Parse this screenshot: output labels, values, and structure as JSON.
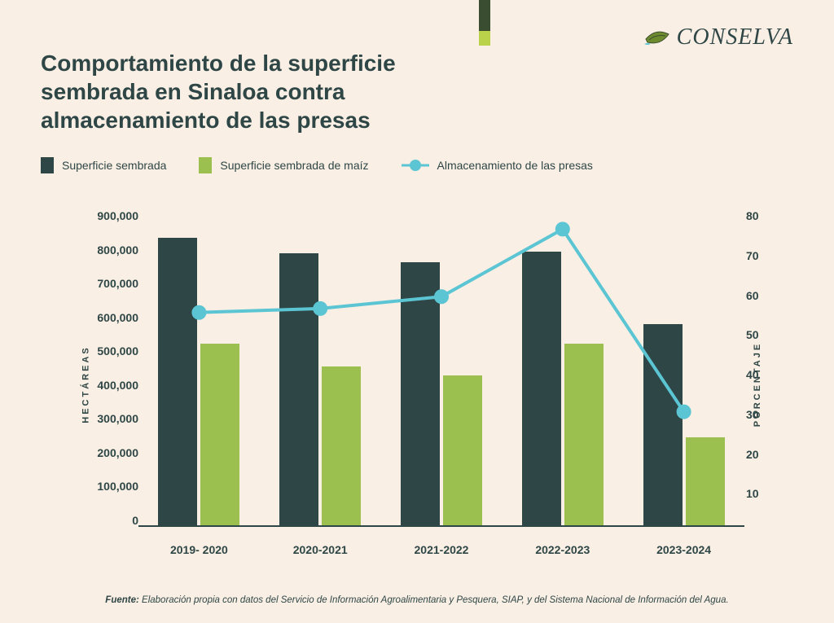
{
  "colors": {
    "background": "#f9efe4",
    "title": "#2f4646",
    "text_dark": "#2f4646",
    "bar_dark": "#2f4646",
    "bar_green": "#9cc04f",
    "line_cyan": "#5bc5d4",
    "baseline": "#2f4646",
    "strip_dark": "#3b4d30",
    "strip_light": "#b9d24a"
  },
  "logo": {
    "text": "CONSELVA"
  },
  "title": "Comportamiento de la superficie sembrada en Sinaloa contra almacenamiento de las presas",
  "legend": {
    "bar1": "Superficie sembrada",
    "bar2": "Superficie sembrada de maíz",
    "line": "Almacenamiento de las presas"
  },
  "chart": {
    "type": "bar+line",
    "categories": [
      "2019- 2020",
      "2020-2021",
      "2021-2022",
      "2022-2023",
      "2023-2024"
    ],
    "y_left": {
      "label": "HECTÁREAS",
      "min": 0,
      "max": 900000,
      "step": 100000,
      "ticks": [
        "900,000",
        "800,000",
        "700,000",
        "600,000",
        "500,000",
        "400,000",
        "300,000",
        "200,000",
        "100,000",
        "0"
      ]
    },
    "y_right": {
      "label": "PORCENTAJE",
      "min": 0,
      "max": 80,
      "step": 10,
      "ticks": [
        "80",
        "70",
        "60",
        "50",
        "40",
        "30",
        "20",
        "10",
        ""
      ]
    },
    "series_bar1": {
      "name": "Superficie sembrada",
      "color_key": "bar_dark",
      "values": [
        820000,
        775000,
        750000,
        780000,
        575000
      ]
    },
    "series_bar2": {
      "name": "Superficie sembrada de maíz",
      "color_key": "bar_green",
      "values": [
        520000,
        455000,
        430000,
        520000,
        255000
      ]
    },
    "series_line": {
      "name": "Almacenamiento de las presas",
      "color_key": "line_cyan",
      "values_pct": [
        54,
        55,
        58,
        75,
        29
      ],
      "line_width": 4,
      "marker_radius": 9
    }
  },
  "source": {
    "label": "Fuente:",
    "text": "Elaboración propia con datos del Servicio de Información Agroalimentaria y Pesquera, SIAP, y del Sistema Nacional de Información del Agua."
  }
}
